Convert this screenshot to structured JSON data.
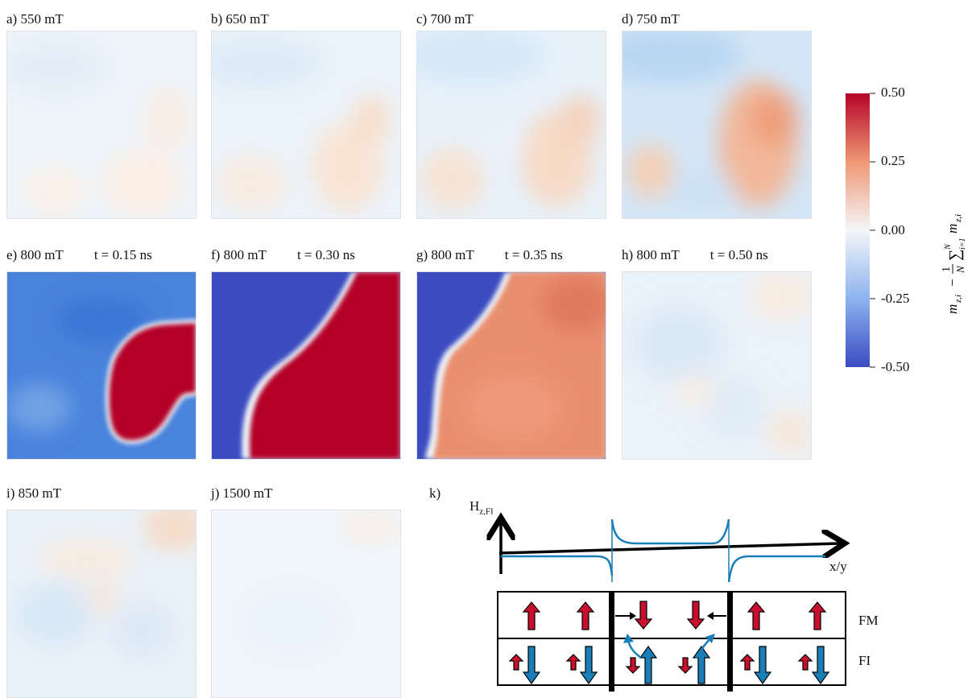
{
  "panels": [
    {
      "id": "a",
      "label": "a) 550 mT",
      "time": ""
    },
    {
      "id": "b",
      "label": "b) 650 mT",
      "time": ""
    },
    {
      "id": "c",
      "label": "c) 700 mT",
      "time": ""
    },
    {
      "id": "d",
      "label": "d) 750 mT",
      "time": ""
    },
    {
      "id": "e",
      "label": "e) 800 mT",
      "time": "t = 0.15 ns"
    },
    {
      "id": "f",
      "label": "f) 800 mT",
      "time": "t = 0.30 ns"
    },
    {
      "id": "g",
      "label": "g) 800 mT",
      "time": "t = 0.35 ns"
    },
    {
      "id": "h",
      "label": "h) 800 mT",
      "time": "t = 0.50 ns"
    },
    {
      "id": "i",
      "label": "i) 850 mT",
      "time": ""
    },
    {
      "id": "j",
      "label": "j) 1500 mT",
      "time": ""
    }
  ],
  "colorbar": {
    "ticks": [
      "0.50",
      "0.25",
      "0.00",
      "-0.25",
      "-0.50"
    ],
    "range": [
      -0.5,
      0.5
    ],
    "colors": {
      "max": "#b40426",
      "mid": "#f4f6f8",
      "min": "#3b4cc0"
    }
  },
  "schematic": {
    "label": "k)",
    "y_axis": "H",
    "y_axis_sub": "z,FI",
    "x_axis": "x/y",
    "row_labels": [
      "FM",
      "FI"
    ],
    "colors": {
      "fm_arrow": "#c8102e",
      "fi_arrow": "#1a7fb8",
      "curve": "#1a7fb8"
    }
  }
}
